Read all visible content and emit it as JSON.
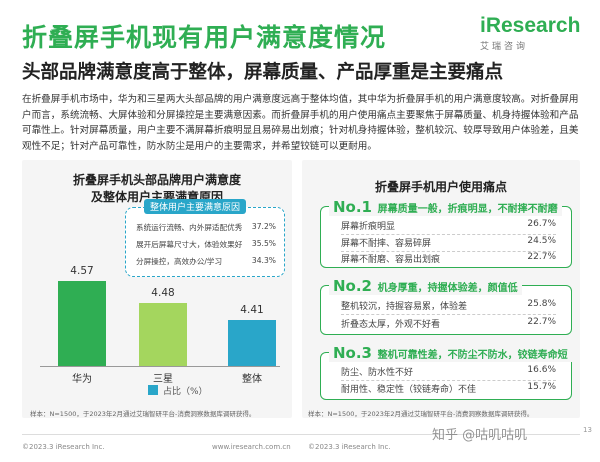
{
  "page_title": "折叠屏手机现有用户满意度情况",
  "subtitle": "头部品牌满意度高于整体，屏幕质量、产品厚重是主要痛点",
  "logo": {
    "brand": "iResearch",
    "sub": "艾瑞咨询"
  },
  "paragraph": "在折叠屏手机市场中，华为和三星两大头部品牌的用户满意度远高于整体均值，其中华为折叠屏手机的用户满意度较高。对折叠屏用户而言，系统流畅、大屏体验和分屏操控是主要满意因素。而折叠屏手机的用户使用痛点主要聚焦于屏幕质量、机身持握体验和产品可靠性上。针对屏幕质量，用户主要不满屏幕折痕明显且易碎易出划痕；针对机身持握体验，整机较沉、较厚导致用户体验差，且美观性不足；针对产品可靠性，防水防尘是用户的主要需求，并希望铰链可以更耐用。",
  "left_panel": {
    "title_line1": "折叠屏手机头部品牌用户满意度",
    "title_line2": "及整体用户主要满意原因",
    "bubble": {
      "title": "整体用户主要满意原因",
      "reasons": [
        {
          "label": "系统运行流畅、内外屏适配优秀",
          "pct": "37.2%"
        },
        {
          "label": "展开后屏幕尺寸大，体验效果好",
          "pct": "35.5%"
        },
        {
          "label": "分屏操控，高效办公/学习",
          "pct": "34.3%"
        }
      ]
    },
    "legend_label": "占比（%）",
    "footnote": "样本：N=1500，于2023年2月通过艾瑞智研平台-消费洞察数据库调研获得。",
    "source_line": "©2023.3 iResearch Inc."
  },
  "chart_data": {
    "type": "bar",
    "categories": [
      "华为",
      "三星",
      "整体"
    ],
    "values": [
      4.57,
      4.48,
      4.41
    ],
    "value_labels": [
      "4.57",
      "4.48",
      "4.41"
    ],
    "colors": [
      "#2fae53",
      "#a4d65e",
      "#29a6c9"
    ],
    "legend": "占比（%）",
    "legend_position": "bottom"
  },
  "right_panel": {
    "title": "折叠屏手机用户使用痛点",
    "groups": [
      {
        "no": "No.1",
        "text": "屏幕质量一般，折痕明显，不耐摔不耐磨",
        "items": [
          {
            "label": "屏幕折痕明显",
            "pct": "26.7%"
          },
          {
            "label": "屏幕不耐摔、容易碎屏",
            "pct": "24.5%"
          },
          {
            "label": "屏幕不耐磨、容易出划痕",
            "pct": "22.7%"
          }
        ]
      },
      {
        "no": "No.2",
        "text": "机身厚重，持握体验差，颜值低",
        "items": [
          {
            "label": "整机较沉，持握容易累，体验差",
            "pct": "25.8%"
          },
          {
            "label": "折叠态太厚，外观不好看",
            "pct": "22.7%"
          }
        ]
      },
      {
        "no": "No.3",
        "text": "整机可靠性差，不防尘不防水，铰链寿命短",
        "items": [
          {
            "label": "防尘、防水性不好",
            "pct": "16.6%"
          },
          {
            "label": "耐用性、稳定性（铰链寿命）不佳",
            "pct": "15.7%"
          }
        ]
      }
    ],
    "footnote": "样本：N=1500，于2023年2月通过艾瑞智研平台-消费洞察数据库调研获得。",
    "source_line": "©2023.3 iResearch Inc."
  },
  "footer_center": "www.iresearch.com.cn",
  "watermark": "知乎 @咕叽咕叽",
  "page_number": "13"
}
